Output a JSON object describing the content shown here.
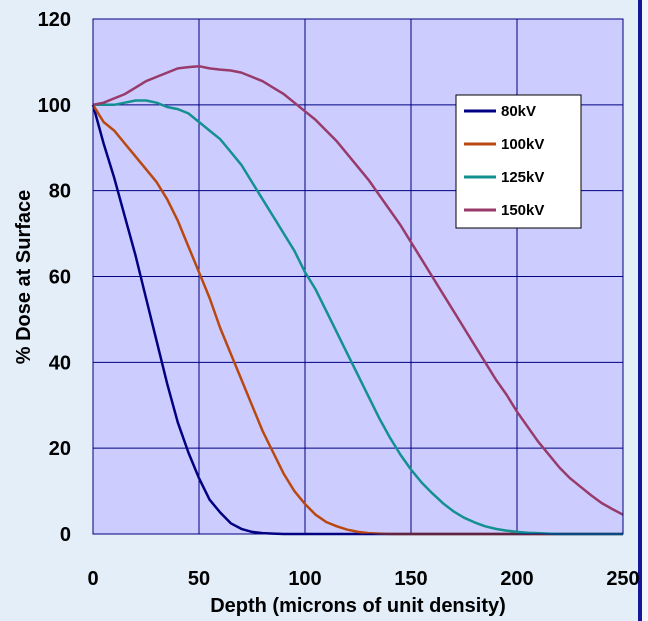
{
  "chart_data": {
    "type": "line",
    "title": "",
    "xlabel": "Depth (microns of unit density)",
    "ylabel": "% Dose at Surface",
    "xlim": [
      0,
      250
    ],
    "ylim": [
      0,
      120
    ],
    "xticks": [
      "0",
      "50",
      "100",
      "150",
      "200",
      "250"
    ],
    "yticks": [
      "0",
      "20",
      "40",
      "60",
      "80",
      "100",
      "120"
    ],
    "grid": true,
    "legend_position": "right",
    "plot_background": "#ccccff",
    "series": [
      {
        "name": "80kV",
        "color": "#000080",
        "x": [
          0,
          5,
          10,
          15,
          20,
          25,
          30,
          35,
          40,
          45,
          50,
          55,
          60,
          65,
          70,
          75,
          80,
          85,
          90,
          95,
          100,
          110,
          120,
          150,
          200,
          250
        ],
        "y": [
          100,
          91,
          83,
          74,
          65,
          55,
          45,
          35,
          26,
          19,
          13,
          8,
          5,
          2.5,
          1.2,
          0.5,
          0.2,
          0.1,
          0,
          0,
          0,
          0,
          0,
          0,
          0,
          0
        ]
      },
      {
        "name": "100kV",
        "color": "#b94810",
        "x": [
          0,
          5,
          10,
          15,
          20,
          25,
          30,
          35,
          40,
          45,
          50,
          55,
          60,
          65,
          70,
          75,
          80,
          85,
          90,
          95,
          100,
          105,
          110,
          115,
          120,
          125,
          130,
          135,
          140,
          150,
          200,
          250
        ],
        "y": [
          100,
          96,
          94,
          91,
          88,
          85,
          82,
          78,
          73,
          67,
          61,
          55,
          48,
          42,
          36,
          30,
          24,
          19,
          14,
          10,
          7,
          4.5,
          2.8,
          1.8,
          1,
          0.5,
          0.2,
          0.1,
          0,
          0,
          0,
          0
        ]
      },
      {
        "name": "125kV",
        "color": "#149090",
        "x": [
          0,
          5,
          10,
          15,
          20,
          25,
          30,
          35,
          40,
          45,
          50,
          55,
          60,
          65,
          70,
          75,
          80,
          85,
          90,
          95,
          100,
          105,
          110,
          115,
          120,
          125,
          130,
          135,
          140,
          145,
          150,
          155,
          160,
          165,
          170,
          175,
          180,
          185,
          190,
          195,
          200,
          205,
          210,
          215,
          220,
          230,
          250
        ],
        "y": [
          100,
          100,
          100,
          100.5,
          101,
          101,
          100.5,
          99.5,
          99,
          98,
          96,
          94,
          92,
          89,
          86,
          82,
          78,
          74,
          70,
          66,
          61,
          57,
          52,
          47,
          42,
          37,
          32,
          27,
          22.5,
          18.5,
          15,
          12,
          9.5,
          7.2,
          5.3,
          3.8,
          2.7,
          1.8,
          1.2,
          0.8,
          0.5,
          0.3,
          0.2,
          0.1,
          0,
          0,
          0
        ]
      },
      {
        "name": "150kV",
        "color": "#983b6b",
        "x": [
          0,
          5,
          10,
          15,
          20,
          25,
          30,
          35,
          40,
          45,
          50,
          55,
          60,
          65,
          70,
          75,
          80,
          85,
          90,
          95,
          100,
          105,
          110,
          115,
          120,
          125,
          130,
          135,
          140,
          145,
          150,
          155,
          160,
          165,
          170,
          175,
          180,
          185,
          190,
          195,
          200,
          205,
          210,
          215,
          220,
          225,
          230,
          235,
          240,
          245,
          250
        ],
        "y": [
          100,
          100.5,
          101.5,
          102.5,
          104,
          105.5,
          106.5,
          107.5,
          108.5,
          108.8,
          109,
          108.5,
          108.2,
          108,
          107.5,
          106.5,
          105.5,
          104,
          102.5,
          100.5,
          98.5,
          96.5,
          94,
          91.5,
          88.5,
          85.5,
          82.5,
          79,
          75.5,
          72,
          68,
          64,
          60,
          56,
          52,
          48,
          44,
          40,
          36,
          32.5,
          28.5,
          25,
          21.5,
          18.5,
          15.5,
          13,
          11,
          9,
          7.2,
          5.8,
          4.5
        ]
      }
    ]
  }
}
